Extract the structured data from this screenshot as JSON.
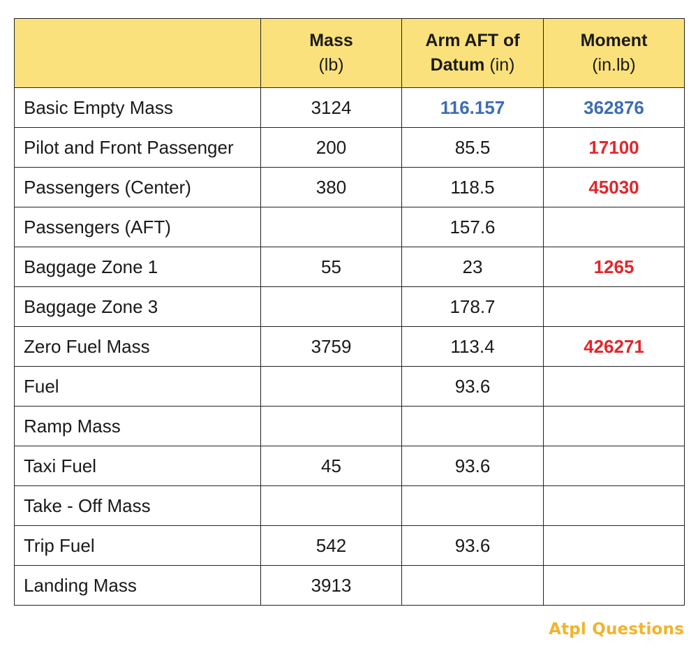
{
  "header": {
    "col1_main": "Mass",
    "col1_unit": "(lb)",
    "col2_main_line1": "Arm AFT of",
    "col2_main_line2": "Datum",
    "col2_unit": "(in)",
    "col3_main": "Moment",
    "col3_unit": "(in.lb)"
  },
  "rows": [
    {
      "label": "Basic Empty Mass",
      "mass": "3124",
      "arm": "116.157",
      "moment": "362876",
      "arm_style": "blue",
      "moment_style": "blue"
    },
    {
      "label": "Pilot and Front Passenger",
      "mass": "200",
      "arm": "85.5",
      "moment": "17100",
      "arm_style": "",
      "moment_style": "red"
    },
    {
      "label": "Passengers (Center)",
      "mass": "380",
      "arm": "118.5",
      "moment": "45030",
      "arm_style": "",
      "moment_style": "red"
    },
    {
      "label": "Passengers (AFT)",
      "mass": "",
      "arm": "157.6",
      "moment": "",
      "arm_style": "",
      "moment_style": ""
    },
    {
      "label": "Baggage Zone 1",
      "mass": "55",
      "arm": "23",
      "moment": "1265",
      "arm_style": "",
      "moment_style": "red"
    },
    {
      "label": "Baggage Zone 3",
      "mass": "",
      "arm": "178.7",
      "moment": "",
      "arm_style": "",
      "moment_style": ""
    },
    {
      "label": "Zero Fuel Mass",
      "mass": "3759",
      "arm": "113.4",
      "moment": "426271",
      "arm_style": "",
      "moment_style": "red"
    },
    {
      "label": "Fuel",
      "mass": "",
      "arm": "93.6",
      "moment": "",
      "arm_style": "",
      "moment_style": ""
    },
    {
      "label": "Ramp Mass",
      "mass": "",
      "arm": "",
      "moment": "",
      "arm_style": "",
      "moment_style": ""
    },
    {
      "label": "Taxi Fuel",
      "mass": "45",
      "arm": "93.6",
      "moment": "",
      "arm_style": "",
      "moment_style": ""
    },
    {
      "label": "Take - Off Mass",
      "mass": "",
      "arm": "",
      "moment": "",
      "arm_style": "",
      "moment_style": ""
    },
    {
      "label": "Trip Fuel",
      "mass": "542",
      "arm": "93.6",
      "moment": "",
      "arm_style": "",
      "moment_style": ""
    },
    {
      "label": "Landing Mass",
      "mass": "3913",
      "arm": "",
      "moment": "",
      "arm_style": "",
      "moment_style": ""
    }
  ],
  "colors": {
    "header_bg": "#fbe17b",
    "blue": "#3c6db3",
    "red": "#e3262a",
    "logo": "#f3b32a"
  },
  "logo": {
    "text": "Atpl Questions"
  }
}
